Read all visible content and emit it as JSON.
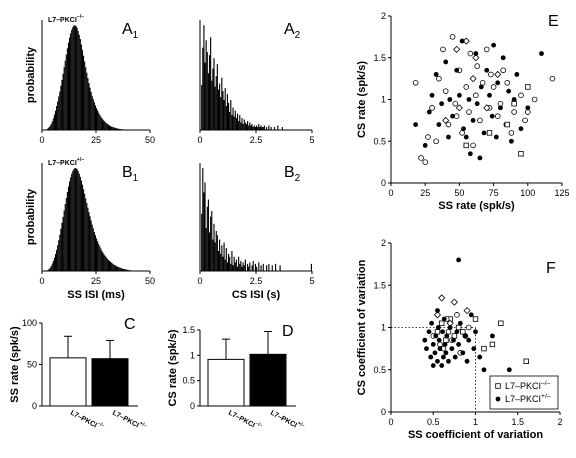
{
  "chart_data": [
    {
      "id": "A1",
      "type": "bar",
      "panel_letter": "A",
      "panel_sub": "1",
      "genotype": "L7–PKCI",
      "genotype_sup": "–/–",
      "xlabel": "",
      "ylabel": "probability",
      "xlim": [
        0,
        50
      ],
      "xticks": [
        "0",
        "25",
        "50"
      ],
      "bin_width": 0.5,
      "x_start": 2,
      "values": [
        0.002,
        0.004,
        0.007,
        0.011,
        0.016,
        0.022,
        0.03,
        0.04,
        0.05,
        0.062,
        0.074,
        0.087,
        0.1,
        0.115,
        0.13,
        0.146,
        0.163,
        0.18,
        0.196,
        0.212,
        0.227,
        0.24,
        0.251,
        0.26,
        0.267,
        0.271,
        0.272,
        0.27,
        0.265,
        0.257,
        0.247,
        0.236,
        0.222,
        0.208,
        0.193,
        0.178,
        0.163,
        0.149,
        0.135,
        0.122,
        0.11,
        0.099,
        0.089,
        0.08,
        0.072,
        0.064,
        0.057,
        0.051,
        0.045,
        0.04,
        0.035,
        0.031,
        0.027,
        0.024,
        0.021,
        0.018,
        0.016,
        0.014,
        0.012,
        0.01,
        0.009,
        0.008,
        0.007,
        0.006,
        0.005,
        0.004,
        0.0035,
        0.003,
        0.0025,
        0.002,
        0.0018,
        0.0015,
        0.0012,
        0.001,
        0.0008,
        0.0006,
        0.0005,
        0.0004
      ]
    },
    {
      "id": "A2",
      "type": "bar",
      "panel_letter": "A",
      "panel_sub": "2",
      "xlabel": "",
      "ylabel": "",
      "xlim": [
        0,
        5
      ],
      "xticks": [
        "0",
        "2.5",
        "5"
      ],
      "bin_width": 0.05,
      "x_start": 0.05,
      "values": [
        0.3,
        0.55,
        0.7,
        0.45,
        0.6,
        0.52,
        0.38,
        0.5,
        0.62,
        0.33,
        0.41,
        0.48,
        0.29,
        0.36,
        0.44,
        0.27,
        0.31,
        0.22,
        0.35,
        0.26,
        0.2,
        0.28,
        0.16,
        0.24,
        0.18,
        0.12,
        0.2,
        0.1,
        0.15,
        0.09,
        0.13,
        0.08,
        0.11,
        0.06,
        0.1,
        0.05,
        0.08,
        0.04,
        0.07,
        0.05,
        0.04,
        0.06,
        0.03,
        0.05,
        0.03,
        0.04,
        0.02,
        0.03,
        0.02,
        0.03,
        0.02,
        0.04,
        0.02,
        0.03,
        0.02,
        0.02,
        0.03,
        0.0,
        0.02,
        0.0,
        0.03,
        0.0,
        0.02,
        0.0,
        0.0,
        0.02,
        0.0,
        0.0,
        0.03,
        0.0,
        0.0,
        0.0,
        0.02
      ]
    },
    {
      "id": "B1",
      "type": "bar",
      "panel_letter": "B",
      "panel_sub": "1",
      "genotype": "L7–PKCI",
      "genotype_sup": "+/–",
      "xlabel": "SS ISI (ms)",
      "ylabel": "probability",
      "xlim": [
        0,
        50
      ],
      "xticks": [
        "0",
        "25",
        "50"
      ],
      "bin_width": 0.5,
      "x_start": 2.5,
      "values": [
        0.002,
        0.004,
        0.007,
        0.011,
        0.016,
        0.022,
        0.029,
        0.037,
        0.046,
        0.056,
        0.067,
        0.079,
        0.092,
        0.105,
        0.118,
        0.132,
        0.146,
        0.159,
        0.172,
        0.184,
        0.195,
        0.204,
        0.212,
        0.218,
        0.222,
        0.224,
        0.224,
        0.222,
        0.218,
        0.212,
        0.205,
        0.197,
        0.188,
        0.178,
        0.168,
        0.158,
        0.148,
        0.138,
        0.128,
        0.119,
        0.11,
        0.101,
        0.093,
        0.085,
        0.078,
        0.071,
        0.065,
        0.059,
        0.054,
        0.049,
        0.044,
        0.04,
        0.036,
        0.033,
        0.03,
        0.027,
        0.024,
        0.022,
        0.02,
        0.018,
        0.016,
        0.014,
        0.013,
        0.011,
        0.01,
        0.009,
        0.008,
        0.007,
        0.006,
        0.005,
        0.0045,
        0.004,
        0.0035,
        0.003,
        0.0025,
        0.002,
        0.0015,
        0.001
      ]
    },
    {
      "id": "B2",
      "type": "bar",
      "panel_letter": "B",
      "panel_sub": "2",
      "xlabel": "CS ISI (s)",
      "ylabel": "",
      "xlim": [
        0,
        5
      ],
      "xticks": [
        "0",
        "2.5",
        "5"
      ],
      "bin_width": 0.05,
      "x_start": 0.05,
      "values": [
        0.4,
        0.72,
        0.55,
        0.62,
        0.3,
        0.45,
        0.5,
        0.27,
        0.38,
        0.42,
        0.22,
        0.33,
        0.2,
        0.28,
        0.25,
        0.14,
        0.22,
        0.12,
        0.18,
        0.1,
        0.2,
        0.08,
        0.16,
        0.06,
        0.12,
        0.1,
        0.05,
        0.14,
        0.04,
        0.1,
        0.06,
        0.08,
        0.03,
        0.1,
        0.05,
        0.07,
        0.03,
        0.06,
        0.04,
        0.08,
        0.0,
        0.05,
        0.03,
        0.06,
        0.0,
        0.04,
        0.07,
        0.0,
        0.05,
        0.03,
        0.0,
        0.06,
        0.0,
        0.04,
        0.0,
        0.05,
        0.0,
        0.0,
        0.04,
        0.0,
        0.05,
        0.0,
        0.0,
        0.04,
        0.0,
        0.0,
        0.05,
        0.0,
        0.0,
        0.0,
        0.04,
        0.0,
        0.0,
        0.0,
        0.0,
        0.0,
        0.0,
        0.0,
        0.0,
        0.0,
        0.0,
        0.0,
        0.0,
        0.0,
        0.0,
        0.0,
        0.0,
        0.0,
        0.0,
        0.0,
        0.0,
        0.0,
        0.0,
        0.0,
        0.0,
        0.0,
        0.0,
        0.0,
        0.05
      ]
    },
    {
      "id": "C",
      "type": "bar",
      "panel_letter": "C",
      "ylabel": "SS rate (spk/s)",
      "ylim": [
        0,
        100
      ],
      "yticks": [
        0,
        50,
        100
      ],
      "categories": [
        "L7–PKCI–/–",
        "L7–PKCI+/–"
      ],
      "cat_base": "L7–PKCI",
      "cat_sup": [
        "–/–",
        "+/–"
      ],
      "values": [
        58,
        57
      ],
      "errors": [
        26,
        22
      ],
      "fills": [
        "#ffffff",
        "#000000"
      ]
    },
    {
      "id": "D",
      "type": "bar",
      "panel_letter": "D",
      "ylabel": "CS rate (spk/s)",
      "ylim": [
        0,
        1.5
      ],
      "yticks": [
        "0",
        "0.5",
        "1",
        "1.5"
      ],
      "categories": [
        "L7–PKCI–/–",
        "L7–PKCI+/–"
      ],
      "cat_base": "L7–PKCI",
      "cat_sup": [
        "–/–",
        "+/–"
      ],
      "values": [
        0.92,
        1.02
      ],
      "errors": [
        0.4,
        0.45
      ],
      "fills": [
        "#ffffff",
        "#000000"
      ]
    },
    {
      "id": "E",
      "type": "scatter",
      "panel_letter": "E",
      "xlabel": "SS rate (spk/s)",
      "ylabel": "CS rate (spk/s)",
      "xlim": [
        0,
        125
      ],
      "ylim": [
        0,
        2
      ],
      "xticks": [
        "0",
        "25",
        "50",
        "75",
        "100",
        "125"
      ],
      "yticks": [
        "0",
        "0.5",
        "1",
        "1.5",
        "2"
      ],
      "series": [
        {
          "marker": "open-circle",
          "points": [
            [
              18,
              1.2
            ],
            [
              22,
              0.3
            ],
            [
              25,
              0.25
            ],
            [
              27,
              0.55
            ],
            [
              30,
              0.9
            ],
            [
              33,
              0.5
            ],
            [
              35,
              1.25
            ],
            [
              38,
              1.6
            ],
            [
              40,
              1.1
            ],
            [
              42,
              0.7
            ],
            [
              45,
              1.75
            ],
            [
              47,
              0.95
            ],
            [
              48,
              0.8
            ],
            [
              50,
              1.35
            ],
            [
              52,
              0.6
            ],
            [
              55,
              1.15
            ],
            [
              57,
              0.85
            ],
            [
              58,
              1.55
            ],
            [
              60,
              0.45
            ],
            [
              62,
              1.05
            ],
            [
              63,
              1.4
            ],
            [
              65,
              0.75
            ],
            [
              67,
              1.2
            ],
            [
              70,
              1.6
            ],
            [
              72,
              0.9
            ],
            [
              73,
              1.3
            ],
            [
              75,
              1.15
            ],
            [
              78,
              0.8
            ],
            [
              80,
              0.95
            ],
            [
              82,
              1.35
            ],
            [
              85,
              1.2
            ],
            [
              88,
              0.6
            ],
            [
              90,
              0.85
            ],
            [
              95,
              1.05
            ],
            [
              98,
              0.75
            ],
            [
              100,
              0.85
            ],
            [
              105,
              1.0
            ],
            [
              118,
              1.25
            ]
          ]
        },
        {
          "marker": "open-diamond",
          "points": [
            [
              48,
              1.6
            ],
            [
              55,
              1.7
            ],
            [
              60,
              1.25
            ],
            [
              62,
              1.5
            ],
            [
              50,
              0.9
            ],
            [
              70,
              0.9
            ],
            [
              78,
              1.3
            ],
            [
              40,
              0.75
            ]
          ]
        },
        {
          "marker": "filled-circle",
          "points": [
            [
              18,
              0.7
            ],
            [
              25,
              0.45
            ],
            [
              28,
              0.85
            ],
            [
              30,
              1.05
            ],
            [
              33,
              1.3
            ],
            [
              35,
              0.7
            ],
            [
              37,
              0.95
            ],
            [
              40,
              1.45
            ],
            [
              42,
              0.55
            ],
            [
              43,
              1.0
            ],
            [
              45,
              0.8
            ],
            [
              48,
              1.35
            ],
            [
              50,
              1.05
            ],
            [
              52,
              1.7
            ],
            [
              53,
              0.65
            ],
            [
              55,
              0.55
            ],
            [
              57,
              1.0
            ],
            [
              58,
              0.35
            ],
            [
              60,
              0.75
            ],
            [
              62,
              1.55
            ],
            [
              63,
              0.95
            ],
            [
              65,
              0.3
            ],
            [
              66,
              1.15
            ],
            [
              68,
              0.6
            ],
            [
              70,
              1.35
            ],
            [
              72,
              1.05
            ],
            [
              74,
              0.8
            ],
            [
              75,
              1.65
            ],
            [
              77,
              0.55
            ],
            [
              78,
              1.2
            ],
            [
              80,
              0.9
            ],
            [
              82,
              1.5
            ],
            [
              84,
              0.7
            ],
            [
              86,
              1.1
            ],
            [
              88,
              0.5
            ],
            [
              90,
              1.0
            ],
            [
              92,
              1.3
            ],
            [
              95,
              0.65
            ],
            [
              100,
              0.9
            ],
            [
              110,
              1.55
            ]
          ]
        },
        {
          "marker": "open-square",
          "points": [
            [
              55,
              0.45
            ],
            [
              72,
              0.6
            ],
            [
              85,
              0.7
            ],
            [
              90,
              0.95
            ],
            [
              95,
              0.35
            ],
            [
              100,
              1.15
            ]
          ]
        }
      ]
    },
    {
      "id": "F",
      "type": "scatter",
      "panel_letter": "F",
      "xlabel": "SS coefficient of variation",
      "ylabel": "CS coefficient of variation",
      "xlim": [
        0,
        2
      ],
      "ylim": [
        0,
        2
      ],
      "xticks": [
        "0",
        "0.5",
        "1",
        "1.5",
        "2"
      ],
      "yticks": [
        "0",
        "0.5",
        "1",
        "1.5",
        "2"
      ],
      "reference": [
        1,
        1
      ],
      "legend": [
        {
          "marker": "open-square",
          "base": "L7–PKCI",
          "sup": "–/–"
        },
        {
          "marker": "filled-circle",
          "base": "L7–PKCI",
          "sup": "+/–"
        }
      ],
      "series": [
        {
          "marker": "open-square",
          "points": [
            [
              0.55,
              0.95
            ],
            [
              0.6,
              1.05
            ],
            [
              0.65,
              0.85
            ],
            [
              0.7,
              1.1
            ],
            [
              0.75,
              0.9
            ],
            [
              0.8,
              1.0
            ],
            [
              0.85,
              0.95
            ],
            [
              1.0,
              1.1
            ],
            [
              1.1,
              0.75
            ],
            [
              1.2,
              0.8
            ],
            [
              1.3,
              1.05
            ],
            [
              1.6,
              0.6
            ]
          ]
        },
        {
          "marker": "open-diamond",
          "points": [
            [
              0.6,
              1.35
            ],
            [
              0.75,
              1.3
            ],
            [
              0.55,
              1.15
            ],
            [
              0.9,
              1.2
            ],
            [
              0.7,
              1.05
            ]
          ]
        },
        {
          "marker": "open-circle",
          "points": [
            [
              0.5,
              0.9
            ],
            [
              0.62,
              0.75
            ],
            [
              0.68,
              0.95
            ],
            [
              0.72,
              0.85
            ],
            [
              0.78,
              1.15
            ],
            [
              0.82,
              0.7
            ],
            [
              0.88,
              0.9
            ],
            [
              0.92,
              1.0
            ],
            [
              0.66,
              1.1
            ],
            [
              0.58,
              0.8
            ]
          ]
        },
        {
          "marker": "filled-circle",
          "points": [
            [
              0.4,
              0.85
            ],
            [
              0.42,
              0.75
            ],
            [
              0.45,
              0.95
            ],
            [
              0.47,
              0.65
            ],
            [
              0.48,
              1.05
            ],
            [
              0.5,
              0.8
            ],
            [
              0.52,
              0.7
            ],
            [
              0.53,
              0.9
            ],
            [
              0.55,
              0.6
            ],
            [
              0.56,
              1.0
            ],
            [
              0.57,
              0.85
            ],
            [
              0.58,
              0.75
            ],
            [
              0.6,
              0.55
            ],
            [
              0.61,
              0.95
            ],
            [
              0.62,
              0.65
            ],
            [
              0.63,
              1.1
            ],
            [
              0.64,
              0.8
            ],
            [
              0.65,
              0.7
            ],
            [
              0.66,
              0.9
            ],
            [
              0.68,
              0.6
            ],
            [
              0.7,
              1.0
            ],
            [
              0.72,
              0.75
            ],
            [
              0.74,
              0.85
            ],
            [
              0.76,
              0.65
            ],
            [
              0.78,
              0.95
            ],
            [
              0.8,
              0.8
            ],
            [
              0.82,
              1.05
            ],
            [
              0.85,
              0.7
            ],
            [
              0.88,
              0.9
            ],
            [
              0.9,
              0.6
            ],
            [
              0.92,
              0.85
            ],
            [
              0.95,
              1.15
            ],
            [
              0.98,
              0.75
            ],
            [
              1.0,
              0.95
            ],
            [
              1.05,
              0.65
            ],
            [
              0.8,
              1.8
            ],
            [
              1.1,
              0.5
            ],
            [
              1.2,
              0.9
            ],
            [
              1.4,
              0.5
            ],
            [
              0.5,
              0.55
            ],
            [
              0.55,
              1.2
            ]
          ]
        }
      ]
    }
  ]
}
